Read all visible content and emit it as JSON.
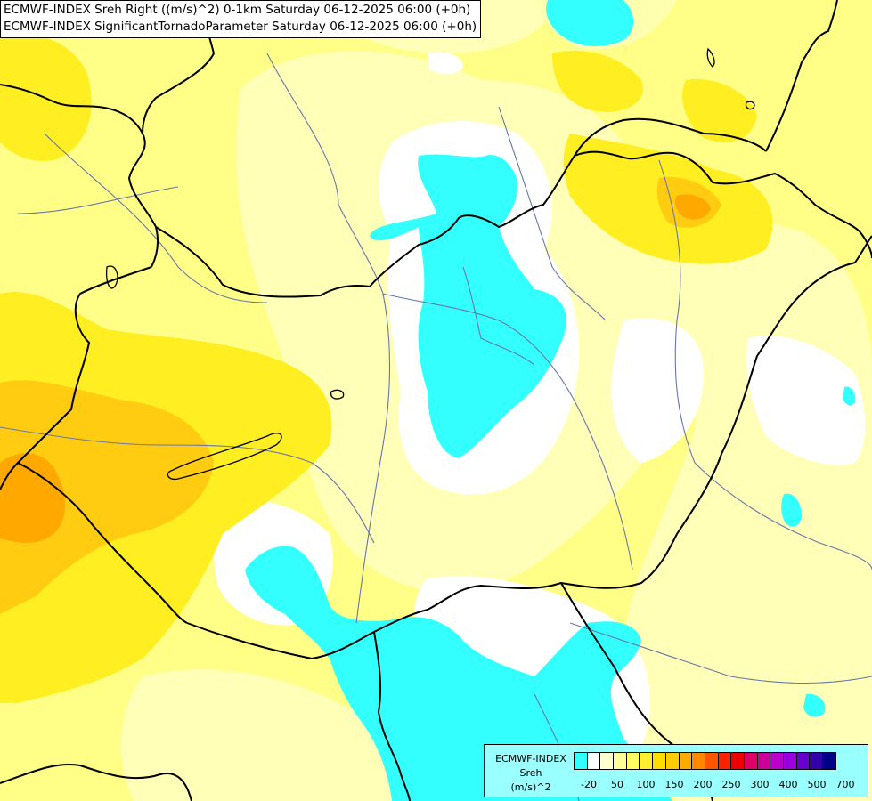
{
  "title": {
    "line1": "ECMWF-INDEX Sreh Right ((m/s)^2) 0-1km Saturday 06-12-2025 06:00 (+0h)",
    "line2": "ECMWF-INDEX SignificantTornadoParameter Saturday 06-12-2025 06:00 (+0h)"
  },
  "legend": {
    "line1": "ECMWF-INDEX",
    "line2": "Sreh",
    "line3": "(m/s)^2",
    "colors": [
      "#33ffff",
      "#ffffff",
      "#ffffd0",
      "#ffff9a",
      "#ffff66",
      "#ffee33",
      "#ffdd00",
      "#ffcc00",
      "#ffaa00",
      "#ff8800",
      "#ff5500",
      "#ff2200",
      "#ee0000",
      "#dd0066",
      "#cc0099",
      "#bb00cc",
      "#9900dd",
      "#6600cc",
      "#3300aa",
      "#000088"
    ],
    "tick_labels": [
      "-20",
      "50",
      "100",
      "150",
      "200",
      "250",
      "300",
      "400",
      "500",
      "700"
    ]
  },
  "colors": {
    "cyan": "#33ffff",
    "white": "#ffffff",
    "pale_yellow": "#ffffb0",
    "yellow": "#ffff77",
    "gold": "#ffee22",
    "amber": "#ffcc00",
    "orange": "#ffaa00",
    "border": "#000000",
    "river": "#6677aa"
  }
}
